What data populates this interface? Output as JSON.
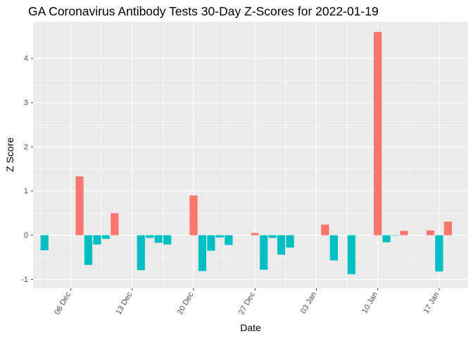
{
  "chart_data": {
    "type": "bar",
    "title": "GA Coronavirus Antibody Tests 30-Day Z-Scores for 2022-01-19",
    "xlabel": "Date",
    "ylabel": "Z Score",
    "x": [
      "2021-12-03",
      "2021-12-04",
      "2021-12-05",
      "2021-12-06",
      "2021-12-07",
      "2021-12-08",
      "2021-12-09",
      "2021-12-10",
      "2021-12-11",
      "2021-12-12",
      "2021-12-13",
      "2021-12-14",
      "2021-12-15",
      "2021-12-16",
      "2021-12-17",
      "2021-12-18",
      "2021-12-19",
      "2021-12-20",
      "2021-12-21",
      "2021-12-22",
      "2021-12-23",
      "2021-12-24",
      "2021-12-25",
      "2021-12-26",
      "2021-12-27",
      "2021-12-28",
      "2021-12-29",
      "2021-12-30",
      "2021-12-31",
      "2022-01-01",
      "2022-01-02",
      "2022-01-03",
      "2022-01-04",
      "2022-01-05",
      "2022-01-06",
      "2022-01-07",
      "2022-01-08",
      "2022-01-09",
      "2022-01-10",
      "2022-01-11",
      "2022-01-12",
      "2022-01-13",
      "2022-01-14",
      "2022-01-15",
      "2022-01-16",
      "2022-01-17",
      "2022-01-18",
      "2022-01-19"
    ],
    "values": [
      -0.34,
      0,
      0,
      0,
      1.33,
      -0.67,
      -0.21,
      -0.08,
      0.5,
      0,
      0,
      -0.79,
      -0.06,
      -0.17,
      -0.21,
      0,
      0,
      0.9,
      -0.81,
      -0.35,
      -0.05,
      -0.22,
      0,
      0,
      0.05,
      -0.78,
      -0.06,
      -0.44,
      -0.28,
      0,
      0,
      0,
      0.24,
      -0.57,
      0,
      -0.88,
      0,
      0,
      4.6,
      -0.16,
      -0.01,
      0.1,
      0,
      0,
      0.11,
      -0.82,
      0.31,
      0
    ],
    "ylim": [
      -1.2,
      4.83
    ],
    "y_ticks": [
      "-1",
      "0",
      "1",
      "2",
      "3",
      "4"
    ],
    "x_ticks": [
      {
        "date": "2021-12-06",
        "label": "06 Dec"
      },
      {
        "date": "2021-12-13",
        "label": "13 Dec"
      },
      {
        "date": "2021-12-20",
        "label": "20 Dec"
      },
      {
        "date": "2021-12-27",
        "label": "27 Dec"
      },
      {
        "date": "2022-01-03",
        "label": "03 Jan"
      },
      {
        "date": "2022-01-10",
        "label": "10 Jan"
      },
      {
        "date": "2022-01-17",
        "label": "17 Jan"
      }
    ],
    "grid": true,
    "colors": {
      "positive": "#F8766D",
      "negative": "#00BFC4",
      "panel": "#EBEBEB",
      "grid": "#FFFFFF",
      "text": "#000000",
      "axis_text": "#4D4D4D"
    }
  }
}
